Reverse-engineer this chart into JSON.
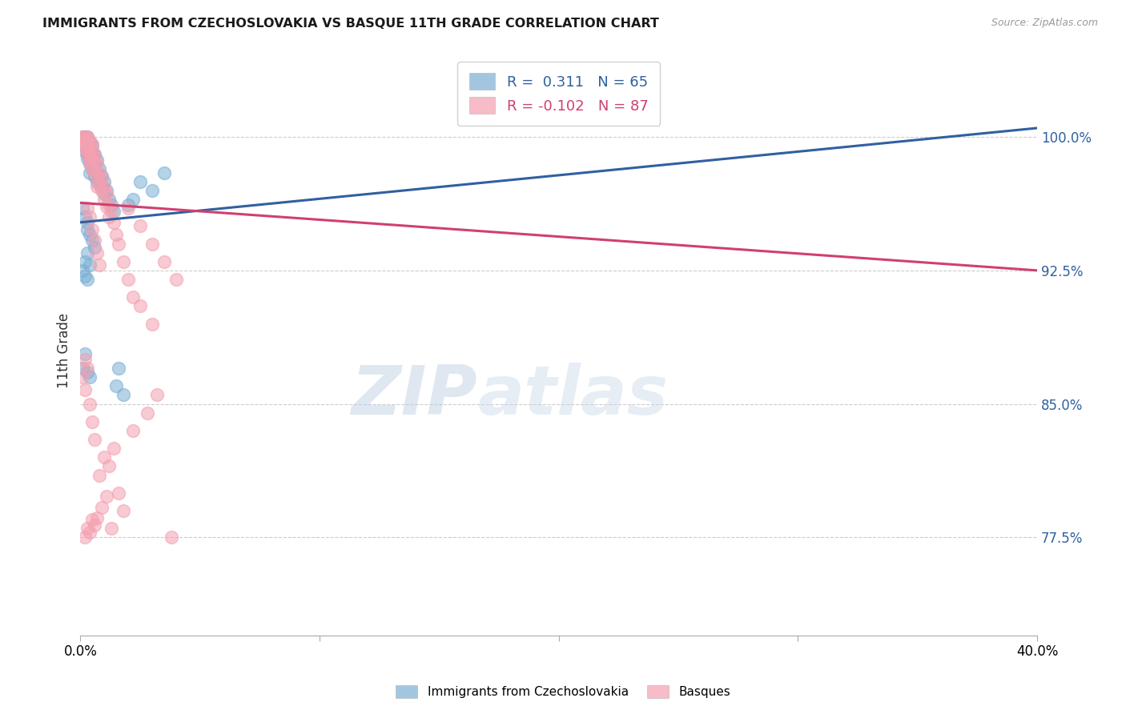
{
  "title": "IMMIGRANTS FROM CZECHOSLOVAKIA VS BASQUE 11TH GRADE CORRELATION CHART",
  "source": "Source: ZipAtlas.com",
  "ylabel": "11th Grade",
  "ytick_labels": [
    "77.5%",
    "85.0%",
    "92.5%",
    "100.0%"
  ],
  "ytick_values": [
    0.775,
    0.85,
    0.925,
    1.0
  ],
  "xlim": [
    0.0,
    0.4
  ],
  "ylim": [
    0.72,
    1.04
  ],
  "R_blue": 0.311,
  "N_blue": 65,
  "R_pink": -0.102,
  "N_pink": 87,
  "blue_color": "#7bafd4",
  "pink_color": "#f4a0b0",
  "blue_line_color": "#3060a0",
  "pink_line_color": "#d04070",
  "legend_label_blue": "Immigrants from Czechoslovakia",
  "legend_label_pink": "Basques",
  "blue_line_x0": 0.0,
  "blue_line_y0": 0.952,
  "blue_line_x1": 0.4,
  "blue_line_y1": 1.005,
  "pink_line_x0": 0.0,
  "pink_line_y0": 0.963,
  "pink_line_x1": 0.4,
  "pink_line_y1": 0.925,
  "blue_scatter_x": [
    0.001,
    0.001,
    0.001,
    0.001,
    0.002,
    0.002,
    0.002,
    0.002,
    0.002,
    0.003,
    0.003,
    0.003,
    0.003,
    0.003,
    0.003,
    0.004,
    0.004,
    0.004,
    0.004,
    0.004,
    0.005,
    0.005,
    0.005,
    0.005,
    0.006,
    0.006,
    0.006,
    0.007,
    0.007,
    0.007,
    0.008,
    0.008,
    0.009,
    0.009,
    0.01,
    0.01,
    0.011,
    0.012,
    0.013,
    0.014,
    0.001,
    0.002,
    0.003,
    0.003,
    0.004,
    0.005,
    0.006,
    0.003,
    0.002,
    0.004,
    0.001,
    0.002,
    0.003,
    0.002,
    0.001,
    0.003,
    0.004,
    0.02,
    0.03,
    0.025,
    0.035,
    0.022,
    0.018,
    0.016,
    0.015
  ],
  "blue_scatter_y": [
    1.0,
    0.998,
    0.997,
    0.995,
    1.0,
    0.998,
    0.996,
    0.995,
    0.992,
    1.0,
    0.998,
    0.996,
    0.993,
    0.99,
    0.988,
    0.997,
    0.993,
    0.99,
    0.985,
    0.98,
    0.995,
    0.992,
    0.988,
    0.982,
    0.99,
    0.985,
    0.978,
    0.987,
    0.98,
    0.975,
    0.982,
    0.975,
    0.978,
    0.972,
    0.975,
    0.968,
    0.97,
    0.965,
    0.962,
    0.958,
    0.96,
    0.955,
    0.952,
    0.948,
    0.945,
    0.942,
    0.938,
    0.935,
    0.93,
    0.928,
    0.925,
    0.922,
    0.92,
    0.878,
    0.87,
    0.868,
    0.865,
    0.962,
    0.97,
    0.975,
    0.98,
    0.965,
    0.855,
    0.87,
    0.86
  ],
  "pink_scatter_x": [
    0.001,
    0.001,
    0.001,
    0.001,
    0.001,
    0.002,
    0.002,
    0.002,
    0.002,
    0.002,
    0.003,
    0.003,
    0.003,
    0.003,
    0.003,
    0.003,
    0.004,
    0.004,
    0.004,
    0.004,
    0.004,
    0.005,
    0.005,
    0.005,
    0.005,
    0.006,
    0.006,
    0.006,
    0.007,
    0.007,
    0.007,
    0.008,
    0.008,
    0.009,
    0.009,
    0.01,
    0.01,
    0.011,
    0.011,
    0.012,
    0.012,
    0.013,
    0.014,
    0.015,
    0.016,
    0.018,
    0.02,
    0.022,
    0.025,
    0.03,
    0.003,
    0.004,
    0.005,
    0.006,
    0.007,
    0.008,
    0.002,
    0.003,
    0.001,
    0.002,
    0.004,
    0.005,
    0.006,
    0.02,
    0.025,
    0.03,
    0.035,
    0.04,
    0.016,
    0.018,
    0.008,
    0.01,
    0.012,
    0.014,
    0.022,
    0.028,
    0.032,
    0.038,
    0.005,
    0.003,
    0.002,
    0.004,
    0.006,
    0.007,
    0.009,
    0.011,
    0.013
  ],
  "pink_scatter_y": [
    1.0,
    0.999,
    0.998,
    0.997,
    0.996,
    1.0,
    0.999,
    0.998,
    0.996,
    0.994,
    1.0,
    0.999,
    0.997,
    0.995,
    0.992,
    0.99,
    0.998,
    0.995,
    0.992,
    0.988,
    0.985,
    0.996,
    0.992,
    0.988,
    0.982,
    0.99,
    0.986,
    0.98,
    0.985,
    0.978,
    0.972,
    0.98,
    0.973,
    0.977,
    0.97,
    0.972,
    0.965,
    0.968,
    0.961,
    0.962,
    0.955,
    0.958,
    0.952,
    0.945,
    0.94,
    0.93,
    0.92,
    0.91,
    0.905,
    0.895,
    0.96,
    0.955,
    0.948,
    0.942,
    0.935,
    0.928,
    0.875,
    0.87,
    0.865,
    0.858,
    0.85,
    0.84,
    0.83,
    0.96,
    0.95,
    0.94,
    0.93,
    0.92,
    0.8,
    0.79,
    0.81,
    0.82,
    0.815,
    0.825,
    0.835,
    0.845,
    0.855,
    0.775,
    0.785,
    0.78,
    0.775,
    0.778,
    0.782,
    0.786,
    0.792,
    0.798,
    0.78
  ],
  "watermark_zip": "ZIP",
  "watermark_atlas": "atlas",
  "background_color": "#ffffff",
  "grid_color": "#cccccc"
}
